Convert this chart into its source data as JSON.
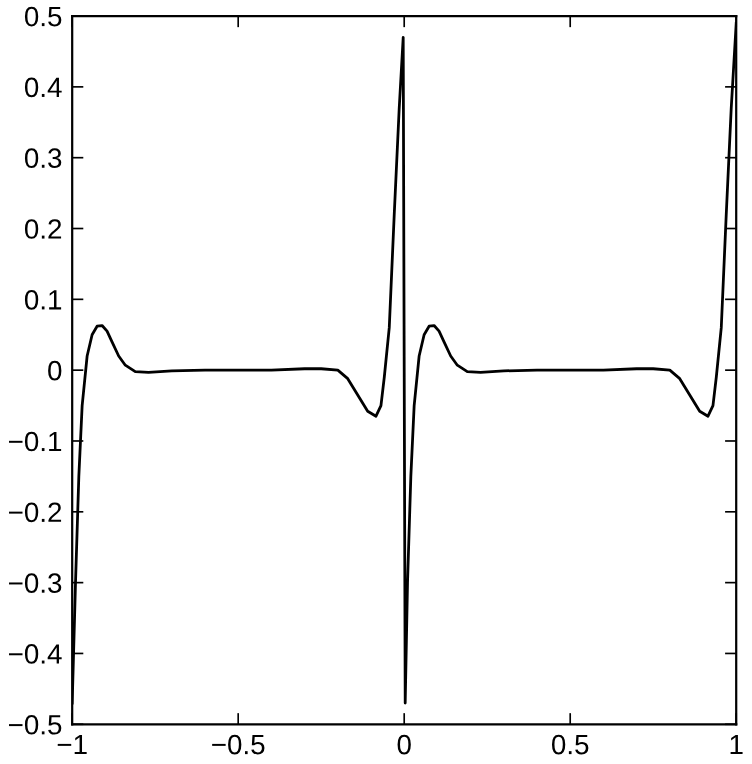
{
  "chart_data": {
    "type": "line",
    "x": [
      -1,
      -0.99,
      -0.98,
      -0.97,
      -0.955,
      -0.94,
      -0.925,
      -0.91,
      -0.895,
      -0.88,
      -0.86,
      -0.84,
      -0.81,
      -0.77,
      -0.7,
      -0.6,
      -0.5,
      -0.4,
      -0.3,
      -0.25,
      -0.2,
      -0.17,
      -0.14,
      -0.11,
      -0.085,
      -0.07,
      -0.06,
      -0.045,
      -0.03,
      -0.015,
      -0.003,
      0.003,
      0.01,
      0.02,
      0.03,
      0.045,
      0.06,
      0.075,
      0.09,
      0.105,
      0.12,
      0.14,
      0.16,
      0.19,
      0.23,
      0.3,
      0.4,
      0.5,
      0.6,
      0.7,
      0.75,
      0.8,
      0.83,
      0.86,
      0.89,
      0.915,
      0.93,
      0.94,
      0.955,
      0.97,
      0.985,
      1
    ],
    "series": [
      {
        "color": "#000000",
        "values": [
          -0.47,
          -0.3,
          -0.15,
          -0.05,
          0.02,
          0.05,
          0.062,
          0.063,
          0.055,
          0.04,
          0.02,
          0.007,
          -0.002,
          -0.003,
          -0.001,
          0,
          0,
          0,
          0.002,
          0.002,
          0,
          -0.012,
          -0.035,
          -0.058,
          -0.065,
          -0.05,
          -0.01,
          0.06,
          0.22,
          0.37,
          0.47,
          -0.47,
          -0.3,
          -0.15,
          -0.05,
          0.02,
          0.05,
          0.062,
          0.063,
          0.055,
          0.04,
          0.02,
          0.007,
          -0.002,
          -0.003,
          -0.001,
          0,
          0,
          0,
          0.002,
          0.002,
          0,
          -0.012,
          -0.035,
          -0.058,
          -0.065,
          -0.05,
          -0.01,
          0.06,
          0.22,
          0.37,
          0.49
        ]
      }
    ],
    "xlim": [
      -1,
      1
    ],
    "xticks": [
      {
        "value": -1,
        "label": "−1"
      },
      {
        "value": -0.5,
        "label": "−0.5"
      },
      0,
      0.5,
      1
    ],
    "ylim": [
      -0.5,
      0.5
    ],
    "yticks": [
      {
        "value": -0.5,
        "label": "−0.5"
      },
      {
        "value": -0.4,
        "label": "−0.4"
      },
      {
        "value": -0.3,
        "label": "−0.3"
      },
      {
        "value": -0.2,
        "label": "−0.2"
      },
      {
        "value": -0.1,
        "label": "−0.1"
      },
      0,
      0.1,
      0.2,
      0.3,
      0.4,
      0.5
    ],
    "grid": false,
    "legend": false,
    "marker": "none",
    "line_style": "solid"
  }
}
